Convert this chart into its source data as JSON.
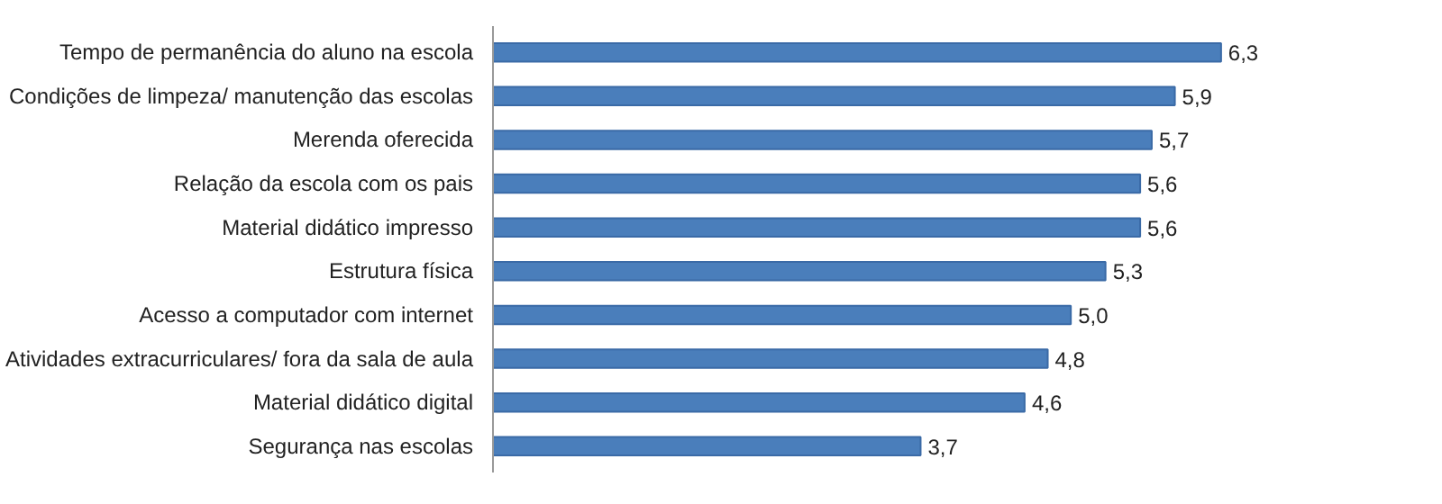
{
  "chart_data": {
    "type": "bar",
    "orientation": "horizontal",
    "categories": [
      "Tempo de permanência do aluno na escola",
      "Condições de limpeza/ manutenção das escolas",
      "Merenda oferecida",
      "Relação da escola com os pais",
      "Material didático impresso",
      "Estrutura física",
      "Acesso a computador com internet",
      "Atividades extracurriculares/ fora da sala de aula",
      "Material didático digital",
      "Segurança nas escolas"
    ],
    "values": [
      6.3,
      5.9,
      5.7,
      5.6,
      5.6,
      5.3,
      5.0,
      4.8,
      4.6,
      3.7
    ],
    "value_labels": [
      "6,3",
      "5,9",
      "5,7",
      "5,6",
      "5,6",
      "5,3",
      "5,0",
      "4,8",
      "4,6",
      "3,7"
    ],
    "color": "#4a7ebb"
  }
}
